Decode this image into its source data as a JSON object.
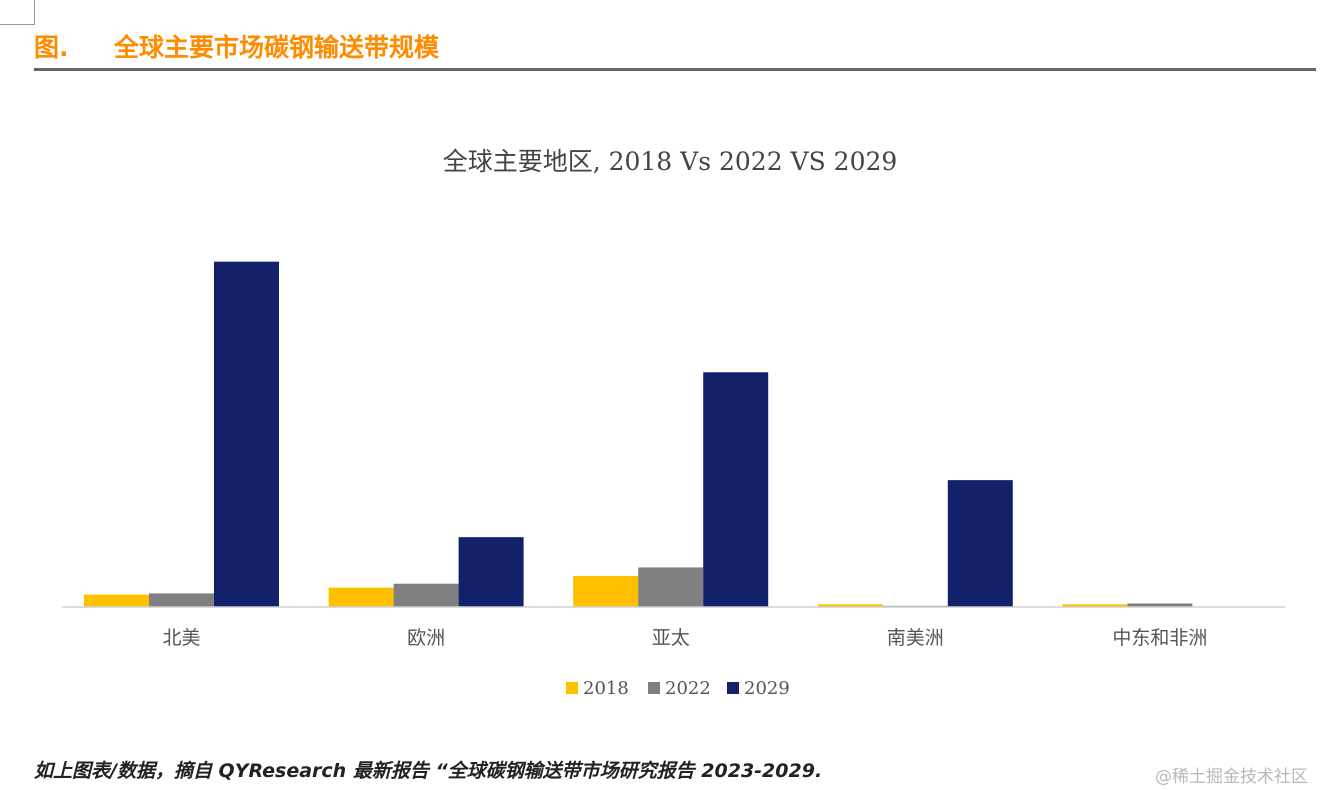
{
  "header": {
    "fig_prefix": "图.",
    "title": "全球主要市场碳钢输送带规模"
  },
  "footer": {
    "note": "如上图表/数据，摘自 QYResearch 最新报告 “全球碳钢输送带市场研究报告 2023-2029."
  },
  "watermark": "@稀土掘金技术社区",
  "colors": {
    "s2018": "#ffc000",
    "s2022": "#808080",
    "s2029": "#13216a",
    "axis": "#d0d0d0"
  },
  "chart_data": {
    "type": "bar",
    "title": "全球主要地区, 2018 Vs 2022 VS 2029",
    "categories": [
      "北美",
      "欧洲",
      "亚太",
      "南美洲",
      "中东和非洲"
    ],
    "series": [
      {
        "name": "2018",
        "values": [
          3.2,
          5.0,
          8.0,
          0.7,
          0.7
        ]
      },
      {
        "name": "2022",
        "values": [
          3.5,
          6.0,
          10.2,
          0.3,
          0.9
        ]
      },
      {
        "name": "2029",
        "values": [
          89.0,
          18.0,
          60.5,
          32.7,
          0
        ]
      }
    ],
    "ylim": [
      0,
      100
    ],
    "legend_position": "bottom",
    "grid": false
  }
}
